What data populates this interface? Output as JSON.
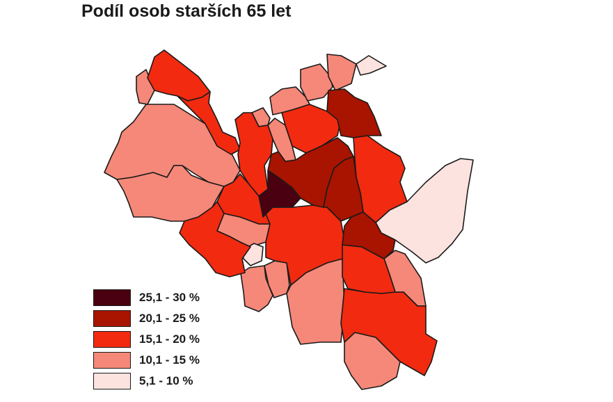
{
  "title": "Podíl osob starších 65 let",
  "legend": [
    {
      "label": "25,1 - 30 %",
      "class": "c5",
      "color": "#4a0010"
    },
    {
      "label": "20,1 - 25 %",
      "class": "c4",
      "color": "#a81400"
    },
    {
      "label": "15,1 - 20 %",
      "class": "c3",
      "color": "#f22a10"
    },
    {
      "label": "10,1 - 15 %",
      "class": "c2",
      "color": "#f58878"
    },
    {
      "label": "5,1 - 10 %",
      "class": "c1",
      "color": "#fde3df"
    }
  ]
}
